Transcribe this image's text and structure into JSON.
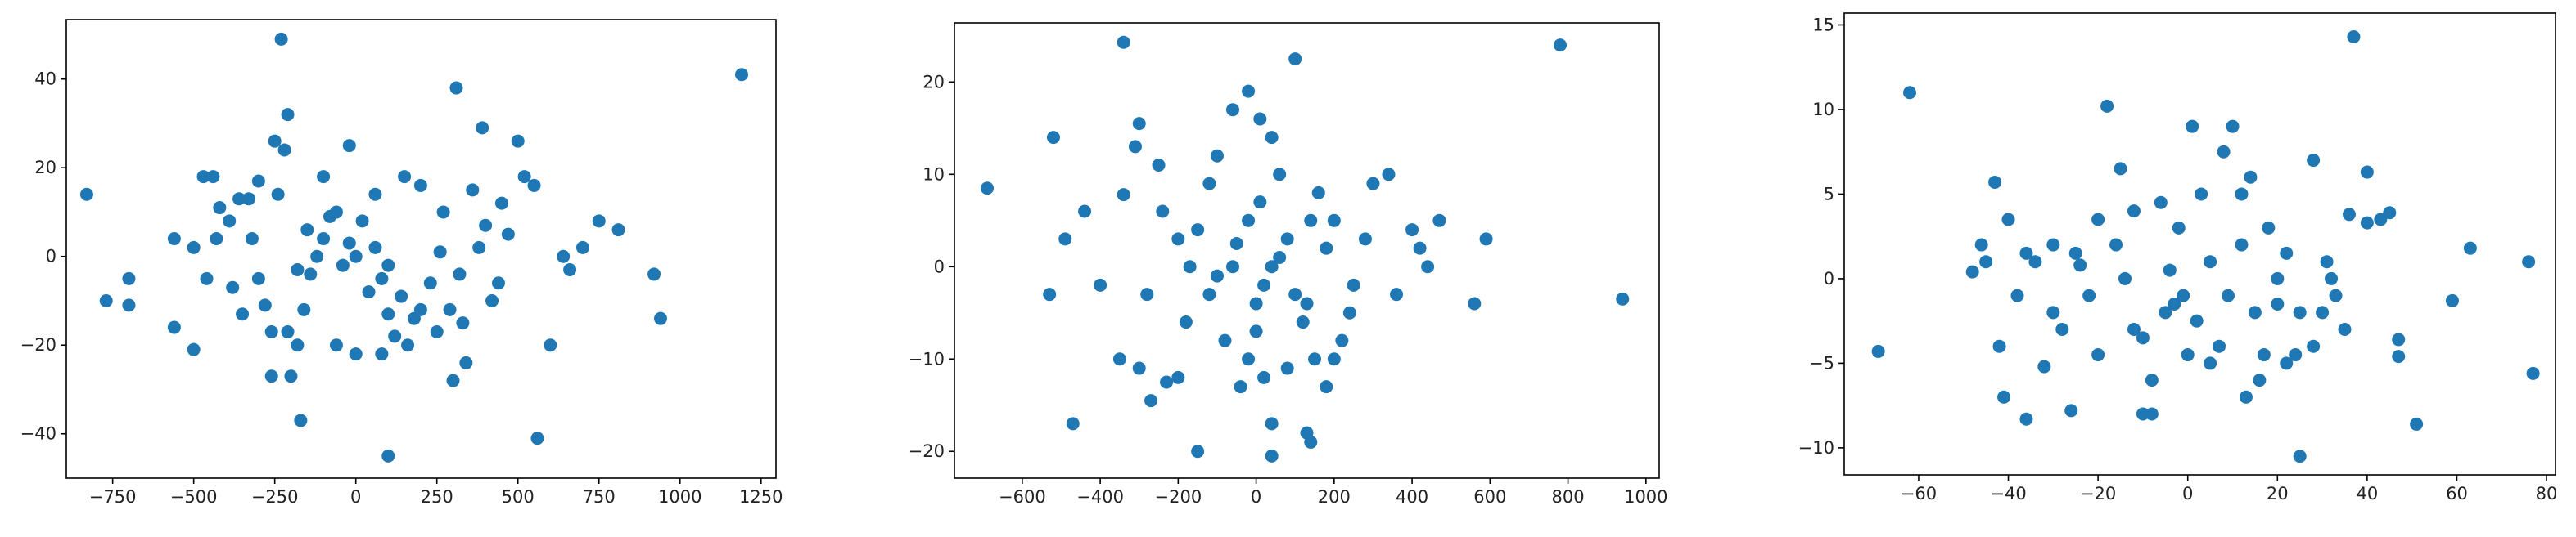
{
  "chart_data": [
    {
      "type": "scatter",
      "color": "#1f77b4",
      "x": [
        -830,
        1190,
        -230,
        100,
        560,
        -170,
        940,
        920,
        810,
        750,
        600,
        310,
        390,
        -250,
        -210,
        -770,
        -700,
        -700,
        -560,
        -560,
        -500,
        -470,
        -440,
        -420,
        -390,
        -360,
        -330,
        -350,
        -300,
        -280,
        -260,
        -260,
        -200,
        -210,
        -180,
        -160,
        -140,
        -120,
        -100,
        -80,
        -60,
        -40,
        -20,
        0,
        20,
        40,
        60,
        80,
        100,
        120,
        140,
        160,
        180,
        200,
        230,
        260,
        290,
        300,
        320,
        340,
        360,
        380,
        400,
        420,
        450,
        470,
        500,
        520,
        550,
        640,
        660,
        700,
        -460,
        -380,
        -320,
        -240,
        -220,
        -180,
        -100,
        -60,
        0,
        60,
        100,
        200,
        250,
        -300,
        -430,
        330,
        440,
        -500,
        -150,
        80,
        -20,
        270,
        150
      ],
      "y": [
        14,
        41,
        49,
        -45,
        -41,
        -37,
        -14,
        -4,
        6,
        8,
        -20,
        38,
        29,
        26,
        32,
        -10,
        -5,
        -11,
        4,
        -16,
        -21,
        18,
        18,
        11,
        8,
        13,
        13,
        -13,
        -5,
        -11,
        -17,
        -27,
        -27,
        -17,
        -20,
        -12,
        -4,
        0,
        4,
        9,
        10,
        -2,
        3,
        0,
        8,
        -8,
        2,
        -5,
        -13,
        -18,
        -9,
        -20,
        -14,
        -12,
        -6,
        1,
        -12,
        -28,
        -4,
        -24,
        15,
        2,
        7,
        -10,
        12,
        5,
        26,
        18,
        16,
        0,
        -3,
        2,
        -5,
        -7,
        4,
        14,
        24,
        -3,
        18,
        -20,
        -22,
        14,
        -2,
        16,
        -17,
        17,
        4,
        -15,
        -6,
        2,
        6,
        -22,
        25,
        10,
        18
      ],
      "xlim": [
        -893,
        1296
      ],
      "ylim": [
        -50,
        53.4
      ],
      "xticks": [
        {
          "value": -750,
          "label": "−750"
        },
        {
          "value": -500,
          "label": "−500"
        },
        {
          "value": -250,
          "label": "−250"
        },
        0,
        250,
        500,
        750,
        1000,
        1250
      ],
      "yticks": [
        {
          "value": -40,
          "label": "−40"
        },
        {
          "value": -20,
          "label": "−20"
        },
        0,
        20,
        40
      ]
    },
    {
      "type": "scatter",
      "color": "#1f77b4",
      "x": [
        -690,
        780,
        940,
        -340,
        100,
        -520,
        -470,
        -530,
        -490,
        -440,
        -340,
        -300,
        -310,
        -250,
        -230,
        -150,
        -100,
        -60,
        -20,
        10,
        40,
        60,
        40,
        40,
        130,
        140,
        -350,
        -300,
        -270,
        -200,
        -180,
        -120,
        -80,
        -40,
        -20,
        0,
        20,
        40,
        60,
        80,
        100,
        120,
        140,
        160,
        180,
        200,
        220,
        250,
        280,
        300,
        340,
        360,
        400,
        420,
        440,
        470,
        560,
        590,
        -200,
        -240,
        -150,
        -100,
        -60,
        -20,
        0,
        20,
        80,
        150,
        180,
        -280,
        -400,
        -120,
        240,
        -170,
        130,
        -50,
        10,
        200
      ],
      "y": [
        8.5,
        24,
        -3.5,
        24.3,
        22.5,
        14,
        -17,
        -3,
        3,
        6,
        7.8,
        15.5,
        13,
        11,
        -12.5,
        -20,
        12,
        17,
        19,
        16,
        14,
        10,
        -17,
        -20.5,
        -18,
        -19,
        -10,
        -11,
        -14.5,
        -12,
        -6,
        -3,
        -8,
        -13,
        -10,
        -4,
        -2,
        0,
        1,
        3,
        -3,
        -6,
        5,
        8,
        2,
        -10,
        -8,
        -2,
        3,
        9,
        10,
        -3,
        4,
        2,
        0,
        5,
        -4,
        3,
        3,
        6,
        4,
        -1,
        0,
        5,
        -7,
        -12,
        -11,
        -10,
        -13,
        -3,
        -2,
        9,
        -5,
        0,
        -4,
        2.5,
        7,
        5
      ],
      "xlim": [
        -774,
        1034
      ],
      "ylim": [
        -22.9,
        26.4
      ],
      "xticks": [
        {
          "value": -600,
          "label": "−600"
        },
        {
          "value": -400,
          "label": "−400"
        },
        {
          "value": -200,
          "label": "−200"
        },
        0,
        200,
        400,
        600,
        800,
        1000
      ],
      "yticks": [
        {
          "value": -20,
          "label": "−20"
        },
        {
          "value": -10,
          "label": "−10"
        },
        0,
        10,
        20
      ]
    },
    {
      "type": "scatter",
      "color": "#1f77b4",
      "x": [
        -69,
        -62,
        37,
        76,
        77,
        63,
        59,
        51,
        47,
        47,
        45,
        43,
        40,
        40,
        36,
        33,
        31,
        30,
        28,
        25,
        24,
        22,
        20,
        20,
        18,
        16,
        14,
        13,
        12,
        10,
        9,
        7,
        5,
        3,
        1,
        0,
        -1,
        -2,
        -4,
        -6,
        -8,
        -10,
        -12,
        -14,
        -16,
        -18,
        -20,
        -22,
        -24,
        -26,
        -28,
        -30,
        -32,
        -34,
        -36,
        -38,
        -40,
        -42,
        -43,
        -41,
        -45,
        -48,
        -46,
        -36,
        -30,
        -25,
        -15,
        -10,
        -5,
        5,
        15,
        25,
        28,
        12,
        8,
        17,
        -3,
        2,
        22,
        32,
        -20,
        -12,
        -8,
        35
      ],
      "y": [
        -4.3,
        11,
        14.3,
        1,
        -5.6,
        1.8,
        -1.3,
        -8.6,
        -3.6,
        -4.6,
        3.9,
        3.5,
        6.3,
        3.3,
        3.8,
        -1,
        1,
        -2,
        -4,
        -10.5,
        -4.5,
        -5,
        0,
        -1.5,
        3,
        -6,
        6,
        -7,
        2,
        9,
        -1,
        -4,
        1,
        5,
        9,
        -4.5,
        -1,
        3,
        0.5,
        4.5,
        -6,
        -8,
        -3,
        0,
        2,
        10.2,
        -4.5,
        -1,
        0.8,
        -7.8,
        -3,
        2,
        -5.2,
        1,
        -8.3,
        -1,
        3.5,
        -4,
        5.7,
        -7,
        1,
        0.4,
        2,
        1.5,
        -2,
        1.5,
        6.5,
        -3.5,
        -2,
        -5,
        -2,
        -2,
        7,
        5,
        7.5,
        -4.5,
        -1.5,
        -2.5,
        1.5,
        0,
        3.5,
        4,
        -8,
        -3
      ],
      "xlim": [
        -76.6,
        82
      ],
      "ylim": [
        -11.6,
        15.7
      ],
      "xticks": [
        {
          "value": -60,
          "label": "−60"
        },
        {
          "value": -40,
          "label": "−40"
        },
        {
          "value": -20,
          "label": "−20"
        },
        0,
        20,
        40,
        60,
        80
      ],
      "yticks": [
        {
          "value": -10,
          "label": "−10"
        },
        {
          "value": -5,
          "label": "−5"
        },
        0,
        5,
        10,
        15
      ]
    }
  ]
}
